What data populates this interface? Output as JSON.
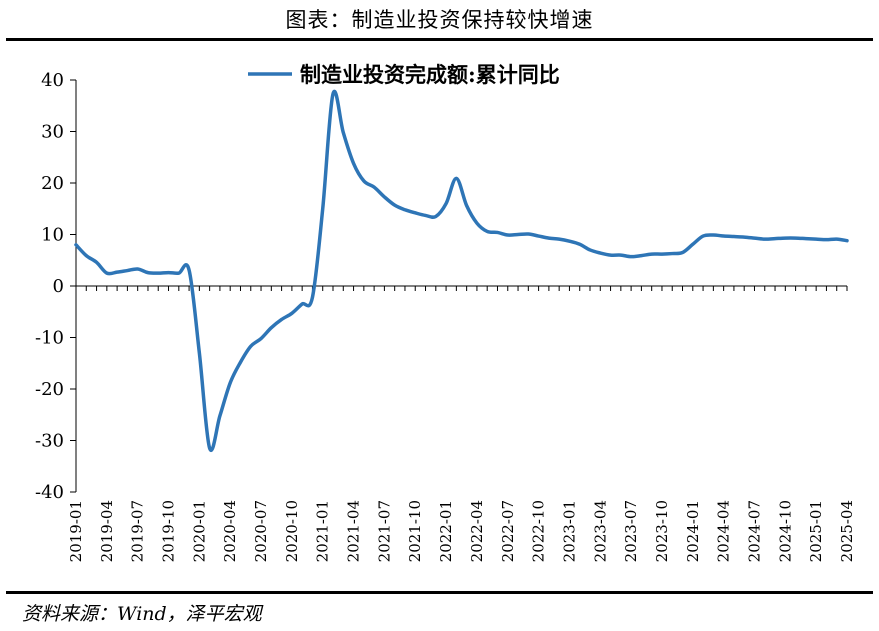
{
  "header": {
    "title": "图表：制造业投资保持较快增速"
  },
  "footer": {
    "source": "资料来源：Wind，泽平宏观"
  },
  "chart_data": {
    "type": "line",
    "title": "",
    "xlabel": "",
    "ylabel": "",
    "ylim": [
      -40,
      40
    ],
    "yticks": [
      40,
      30,
      20,
      10,
      0,
      -10,
      -20,
      -30,
      -40
    ],
    "legend": "top-center",
    "grid": false,
    "x_tick_labels": [
      "2019-01",
      "2019-04",
      "2019-07",
      "2019-10",
      "2020-01",
      "2020-04",
      "2020-07",
      "2020-10",
      "2021-01",
      "2021-04",
      "2021-07",
      "2021-10",
      "2022-01",
      "2022-04",
      "2022-07",
      "2022-10",
      "2023-01",
      "2023-04",
      "2023-07",
      "2023-10",
      "2024-01",
      "2024-04",
      "2024-07",
      "2024-10",
      "2025-01",
      "2025-04"
    ],
    "series": [
      {
        "name": "制造业投资完成额:累计同比",
        "color": "#2E75B6",
        "x": [
          "2019-01",
          "2019-02",
          "2019-03",
          "2019-04",
          "2019-05",
          "2019-06",
          "2019-07",
          "2019-08",
          "2019-09",
          "2019-10",
          "2019-11",
          "2019-12",
          "2020-01",
          "2020-02",
          "2020-03",
          "2020-04",
          "2020-05",
          "2020-06",
          "2020-07",
          "2020-08",
          "2020-09",
          "2020-10",
          "2020-11",
          "2020-12",
          "2021-01",
          "2021-02",
          "2021-03",
          "2021-04",
          "2021-05",
          "2021-06",
          "2021-07",
          "2021-08",
          "2021-09",
          "2021-10",
          "2021-11",
          "2021-12",
          "2022-01",
          "2022-02",
          "2022-03",
          "2022-04",
          "2022-05",
          "2022-06",
          "2022-07",
          "2022-08",
          "2022-09",
          "2022-10",
          "2022-11",
          "2022-12",
          "2023-01",
          "2023-02",
          "2023-03",
          "2023-04",
          "2023-05",
          "2023-06",
          "2023-07",
          "2023-08",
          "2023-09",
          "2023-10",
          "2023-11",
          "2023-12",
          "2024-01",
          "2024-02",
          "2024-03",
          "2024-04",
          "2024-05",
          "2024-06",
          "2024-07",
          "2024-08",
          "2024-09",
          "2024-10",
          "2024-11",
          "2024-12",
          "2025-01",
          "2025-02",
          "2025-03",
          "2025-04"
        ],
        "values": [
          8.0,
          5.9,
          4.6,
          2.5,
          2.7,
          3.0,
          3.3,
          2.6,
          2.5,
          2.6,
          2.5,
          3.1,
          -13.0,
          -31.5,
          -25.2,
          -18.8,
          -14.8,
          -11.7,
          -10.2,
          -8.1,
          -6.5,
          -5.3,
          -3.5,
          -2.2,
          15.0,
          37.3,
          29.8,
          23.8,
          20.4,
          19.2,
          17.3,
          15.7,
          14.8,
          14.2,
          13.7,
          13.5,
          16.0,
          20.9,
          15.6,
          12.2,
          10.6,
          10.4,
          9.9,
          10.0,
          10.1,
          9.7,
          9.3,
          9.1,
          8.7,
          8.1,
          7.0,
          6.4,
          6.0,
          6.0,
          5.7,
          5.9,
          6.2,
          6.2,
          6.3,
          6.5,
          8.1,
          9.7,
          9.9,
          9.7,
          9.6,
          9.5,
          9.3,
          9.1,
          9.2,
          9.3,
          9.3,
          9.2,
          9.1,
          9.0,
          9.1,
          8.8
        ]
      }
    ]
  }
}
